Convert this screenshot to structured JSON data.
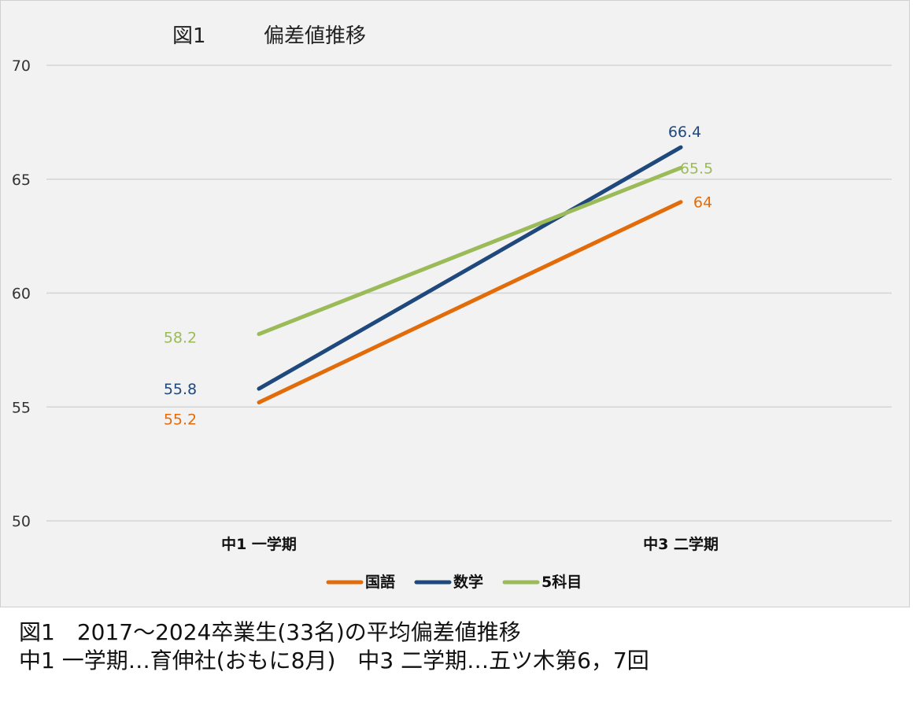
{
  "chart_data": {
    "type": "line",
    "title_prefix": "図1",
    "title": "偏差値推移",
    "categories": [
      "中1 一学期",
      "中3 二学期"
    ],
    "ylim": [
      50,
      70
    ],
    "yticks": [
      50,
      55,
      60,
      65,
      70
    ],
    "grid": true,
    "legend_position": "bottom",
    "series": [
      {
        "name": "国語",
        "color": "#e36c0a",
        "values": [
          55.2,
          64
        ],
        "labels": [
          "55.2",
          "64"
        ]
      },
      {
        "name": "数学",
        "color": "#1f497d",
        "values": [
          55.8,
          66.4
        ],
        "labels": [
          "55.8",
          "66.4"
        ]
      },
      {
        "name": "5科目",
        "color": "#9bbb59",
        "values": [
          58.2,
          65.5
        ],
        "labels": [
          "58.2",
          "65.5"
        ]
      }
    ]
  },
  "caption": {
    "line1": "図1　2017〜2024卒業生(33名)の平均偏差値推移",
    "line2": "中1 一学期…育伸社(おもに8月)　中3 二学期…五ツ木第6，7回"
  }
}
